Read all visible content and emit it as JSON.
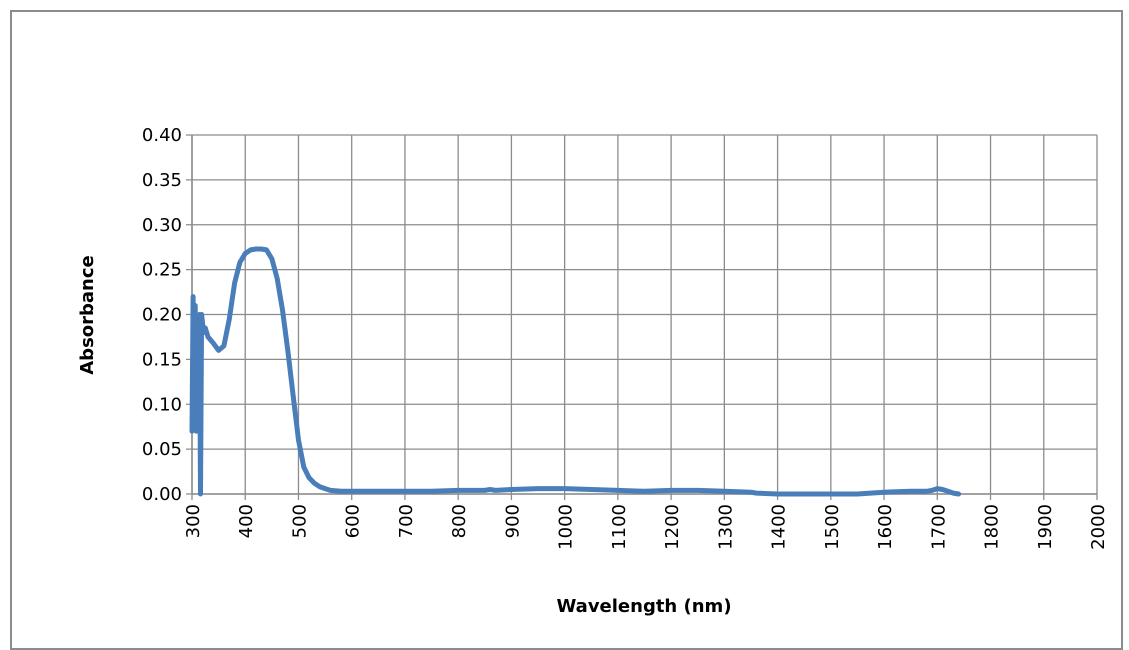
{
  "chart_data": {
    "type": "line",
    "title": "",
    "xlabel": "Wavelength (nm)",
    "ylabel": "Absorbance",
    "xlim": [
      300,
      2000
    ],
    "ylim": [
      0,
      0.4
    ],
    "x_ticks": [
      "300",
      "400",
      "500",
      "600",
      "700",
      "800",
      "900",
      "1000",
      "1100",
      "1200",
      "1300",
      "1400",
      "1500",
      "1600",
      "1700",
      "1800",
      "1900",
      "2000"
    ],
    "y_ticks": [
      "0.00",
      "0.05",
      "0.10",
      "0.15",
      "0.20",
      "0.25",
      "0.30",
      "0.35",
      "0.40"
    ],
    "grid": true,
    "legend": "none",
    "series_color": "#4a7ebb",
    "series": [
      {
        "x": [
          300,
          302,
          304,
          306,
          308,
          310,
          312,
          314,
          316,
          318,
          320,
          322,
          325,
          330,
          340,
          350,
          360,
          370,
          380,
          390,
          400,
          410,
          420,
          430,
          440,
          450,
          460,
          470,
          480,
          490,
          500,
          510,
          520,
          530,
          540,
          550,
          560,
          580,
          600,
          650,
          700,
          750,
          800,
          850,
          860,
          870,
          900,
          950,
          1000,
          1050,
          1100,
          1150,
          1200,
          1250,
          1300,
          1350,
          1360,
          1400,
          1450,
          1500,
          1550,
          1600,
          1650,
          1680,
          1690,
          1700,
          1710,
          1720,
          1730,
          1740
        ],
        "y": [
          0.07,
          0.22,
          0.1,
          0.21,
          0.07,
          0.18,
          0.08,
          0.2,
          0.0,
          0.2,
          0.19,
          0.18,
          0.185,
          0.175,
          0.168,
          0.16,
          0.165,
          0.195,
          0.235,
          0.258,
          0.268,
          0.272,
          0.273,
          0.273,
          0.272,
          0.262,
          0.24,
          0.205,
          0.16,
          0.11,
          0.06,
          0.03,
          0.018,
          0.012,
          0.008,
          0.006,
          0.004,
          0.003,
          0.003,
          0.003,
          0.003,
          0.003,
          0.004,
          0.004,
          0.005,
          0.004,
          0.005,
          0.006,
          0.006,
          0.005,
          0.004,
          0.003,
          0.004,
          0.004,
          0.003,
          0.002,
          0.001,
          0.0,
          0.0,
          0.0,
          0.0,
          0.002,
          0.003,
          0.003,
          0.004,
          0.006,
          0.005,
          0.003,
          0.001,
          0.0
        ]
      }
    ]
  }
}
